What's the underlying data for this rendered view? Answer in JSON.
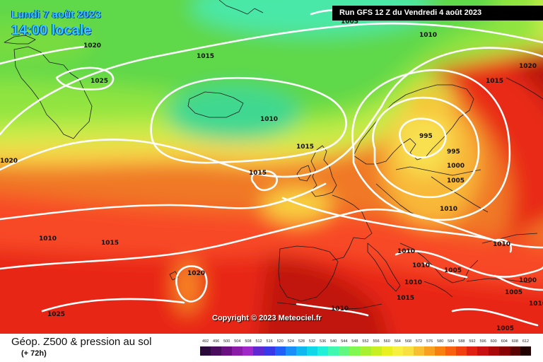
{
  "header": {
    "date_label": "Lundi 7 août 2023",
    "time_label": "14:00 locale",
    "run_label": "Run GFS 12 Z du Vendredi 4 août 2023"
  },
  "copyright": "Copyright © 2023 Meteociel.fr",
  "footer": {
    "title": "Géop. Z500 & pression au sol",
    "subtitle": "(+ 72h)"
  },
  "scale": {
    "values": [
      "492",
      "496",
      "500",
      "504",
      "508",
      "512",
      "516",
      "520",
      "524",
      "528",
      "532",
      "536",
      "540",
      "544",
      "548",
      "552",
      "556",
      "560",
      "564",
      "568",
      "572",
      "576",
      "580",
      "584",
      "588",
      "592",
      "596",
      "600",
      "604",
      "608",
      "612"
    ],
    "colors": [
      "#2a0a3a",
      "#4a0c5c",
      "#6a1080",
      "#8a1ca8",
      "#a028c8",
      "#6028d0",
      "#3838e8",
      "#2060f8",
      "#1890f8",
      "#10b8f0",
      "#10d8e8",
      "#20f0d8",
      "#40f8b0",
      "#60f880",
      "#80f850",
      "#a8f030",
      "#c8f020",
      "#e8f020",
      "#f8f040",
      "#f8e040",
      "#f8c030",
      "#f8a020",
      "#f88010",
      "#f86010",
      "#f04010",
      "#e02010",
      "#c81010",
      "#a80808",
      "#880404",
      "#580202",
      "#200000"
    ]
  },
  "pressure_labels": [
    "1005",
    "1010",
    "1020",
    "1015",
    "1025",
    "1020",
    "1015",
    "1010",
    "1015",
    "1015",
    "1015",
    "995",
    "995",
    "1000",
    "1005",
    "1010",
    "1010",
    "1020",
    "1010",
    "1010",
    "1010",
    "1010",
    "1005",
    "1005",
    "1000",
    "1005",
    "1015",
    "1010",
    "1025",
    "1010",
    "1020"
  ],
  "map": {
    "theme": "500 hPa geopotential height (colour shading) and mean sea-level pressure isobars (white lines), North Atlantic and Europe"
  }
}
